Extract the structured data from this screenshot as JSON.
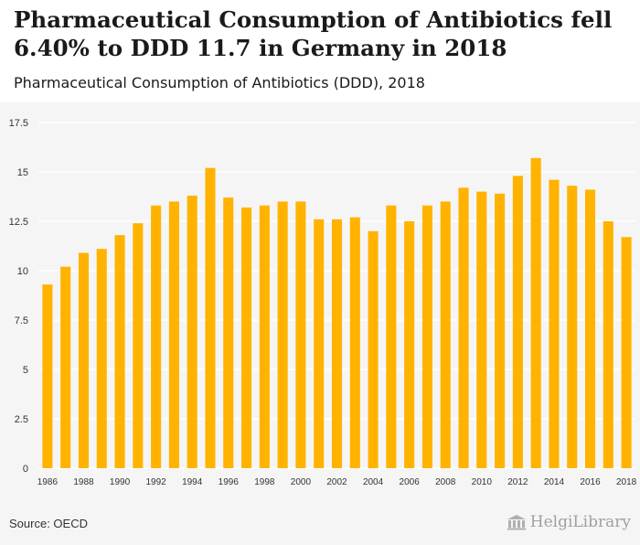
{
  "header": {
    "title": "Pharmaceutical Consumption of Antibiotics fell 6.40% to DDD 11.7 in Germany in 2018",
    "subtitle": "Pharmaceutical Consumption of Antibiotics (DDD), 2018"
  },
  "footer": {
    "source": "Source: OECD",
    "logo_text": "HelgiLibrary"
  },
  "colors": {
    "bar": "#FFB300",
    "plot_background": "#f5f5f5",
    "gridline": "#ffffff",
    "tick_text": "#333333"
  },
  "chart_data": {
    "type": "bar",
    "title": "",
    "xlabel": "",
    "ylabel": "",
    "ylim": [
      0,
      17.5
    ],
    "grid": true,
    "legend": "none",
    "yticks": [
      "0",
      "2.5",
      "5",
      "7.5",
      "10",
      "12.5",
      "15",
      "17.5"
    ],
    "xticks": [
      "1986",
      "1988",
      "1990",
      "1992",
      "1994",
      "1996",
      "1998",
      "2000",
      "2002",
      "2004",
      "2006",
      "2008",
      "2010",
      "2012",
      "2014",
      "2016",
      "2018"
    ],
    "categories": [
      "1986",
      "1987",
      "1988",
      "1989",
      "1990",
      "1991",
      "1992",
      "1993",
      "1994",
      "1995",
      "1996",
      "1997",
      "1998",
      "1999",
      "2000",
      "2001",
      "2002",
      "2003",
      "2004",
      "2005",
      "2006",
      "2007",
      "2008",
      "2009",
      "2010",
      "2011",
      "2012",
      "2013",
      "2014",
      "2015",
      "2016",
      "2017",
      "2018"
    ],
    "values": [
      9.3,
      10.2,
      10.9,
      11.1,
      11.8,
      12.4,
      13.3,
      13.5,
      13.8,
      15.2,
      13.7,
      13.2,
      13.3,
      13.5,
      13.5,
      12.6,
      12.6,
      12.7,
      12.0,
      13.3,
      12.5,
      13.3,
      13.5,
      14.2,
      14.0,
      13.9,
      14.8,
      15.7,
      14.6,
      14.3,
      14.1,
      12.5,
      11.7
    ]
  }
}
